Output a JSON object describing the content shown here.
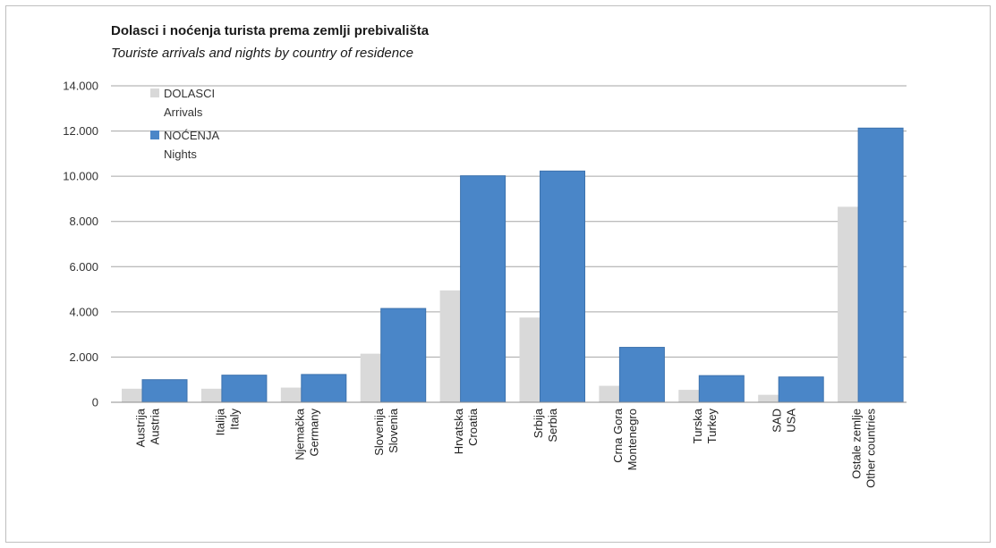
{
  "chart_data": {
    "type": "bar",
    "title": "Dolasci i noćenja turista prema zemlji prebivališta",
    "subtitle": "Touriste arrivals and nights by country of residence",
    "categories": [
      [
        "Austrija",
        "Austria"
      ],
      [
        "Italija",
        "Italy"
      ],
      [
        "Njemačka",
        "Germany"
      ],
      [
        "Slovenija",
        "Slovenia"
      ],
      [
        "Hrvatska",
        "Croatia"
      ],
      [
        "Srbija",
        "Serbia"
      ],
      [
        "Crna Gora",
        "Montenegro"
      ],
      [
        "Turska",
        "Turkey"
      ],
      [
        "SAD",
        "USA"
      ],
      [
        "Ostale zemlje",
        "Other countries"
      ]
    ],
    "series": [
      {
        "name": [
          "DOLASCI",
          "Arrivals"
        ],
        "color": "#d9d9d9",
        "values": [
          600,
          600,
          650,
          2150,
          4950,
          3750,
          730,
          550,
          330,
          8650
        ]
      },
      {
        "name": [
          "NOĆENJA",
          "Nights"
        ],
        "color": "#4a86c8",
        "values": [
          1000,
          1200,
          1230,
          4150,
          10020,
          10230,
          2430,
          1180,
          1120,
          12130
        ]
      }
    ],
    "yticks": [
      "0",
      "2.000",
      "4.000",
      "6.000",
      "8.000",
      "10.000",
      "12.000",
      "14.000"
    ],
    "ylim": [
      0,
      14000
    ],
    "grid": true,
    "legend_position": "top-left"
  }
}
